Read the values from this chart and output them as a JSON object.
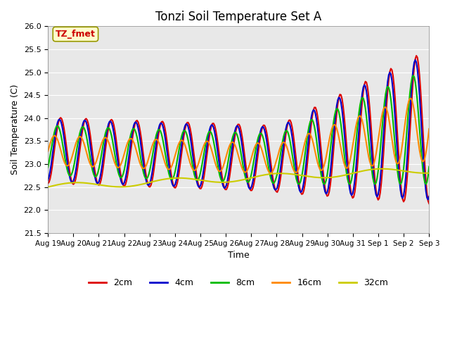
{
  "title": "Tonzi Soil Temperature Set A",
  "ylabel": "Soil Temperature (C)",
  "xlabel": "Time",
  "ylim": [
    21.5,
    26.0
  ],
  "annotation": "TZ_fmet",
  "background_color": "#e8e8e8",
  "figure_color": "#ffffff",
  "series": {
    "2cm": {
      "color": "#dd0000",
      "lw": 1.5
    },
    "4cm": {
      "color": "#0000cc",
      "lw": 1.5
    },
    "8cm": {
      "color": "#00bb00",
      "lw": 1.5
    },
    "16cm": {
      "color": "#ff8800",
      "lw": 1.5
    },
    "32cm": {
      "color": "#cccc00",
      "lw": 1.5
    }
  },
  "xtick_labels": [
    "Aug 19",
    "Aug 20",
    "Aug 21",
    "Aug 22",
    "Aug 23",
    "Aug 24",
    "Aug 25",
    "Aug 26",
    "Aug 27",
    "Aug 28",
    "Aug 29",
    "Aug 30",
    "Aug 31",
    "Sep 1",
    "Sep 2",
    "Sep 3"
  ],
  "ytick_labels": [
    "21.5",
    "22.0",
    "22.5",
    "23.0",
    "23.5",
    "24.0",
    "24.5",
    "25.0",
    "25.5",
    "26.0"
  ],
  "ytick_values": [
    21.5,
    22.0,
    22.5,
    23.0,
    23.5,
    24.0,
    24.5,
    25.0,
    25.5,
    26.0
  ],
  "legend_labels": [
    "2cm",
    "4cm",
    "8cm",
    "16cm",
    "32cm"
  ],
  "legend_colors": [
    "#dd0000",
    "#0000cc",
    "#00bb00",
    "#ff8800",
    "#cccc00"
  ]
}
